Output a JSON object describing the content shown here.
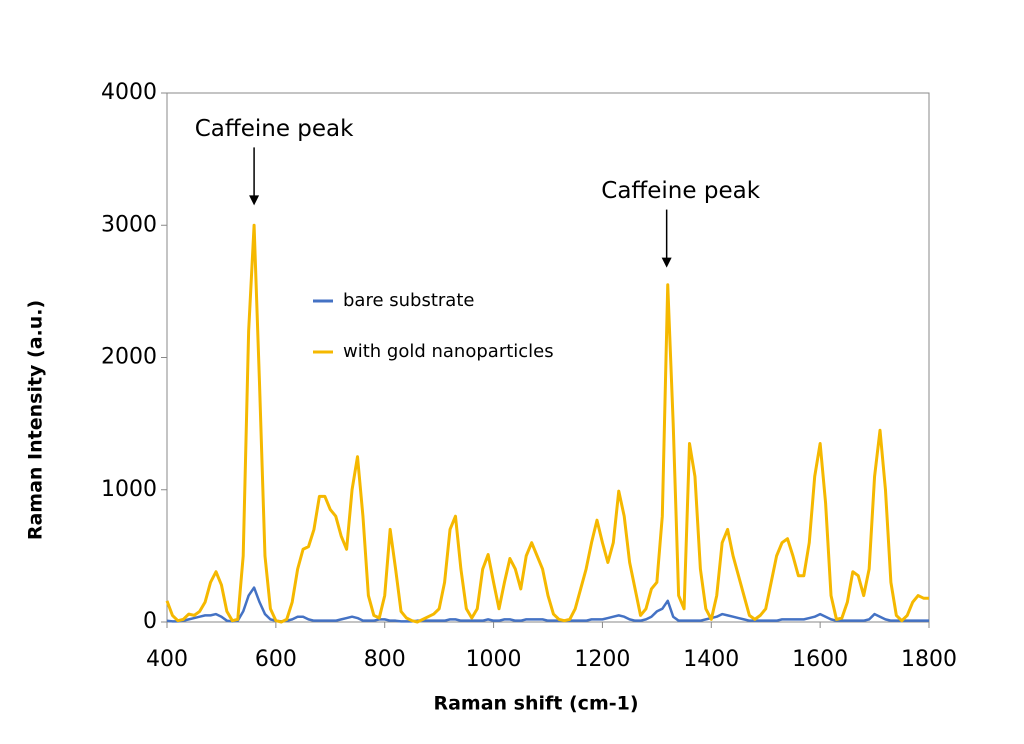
{
  "chart_data": {
    "type": "line",
    "xlabel": "Raman shift  (cm-1)",
    "ylabel": "Raman Intensity (a.u.)",
    "xlim": [
      400,
      1800
    ],
    "xticks": [
      400,
      600,
      800,
      1000,
      1200,
      1400,
      1600,
      1800
    ],
    "ylim": [
      0,
      4000
    ],
    "yticks": [
      0,
      1000,
      2000,
      3000,
      4000
    ],
    "grid": false,
    "legend": "center left",
    "x": [
      400,
      410,
      420,
      430,
      440,
      450,
      460,
      470,
      480,
      490,
      500,
      510,
      520,
      530,
      540,
      550,
      560,
      570,
      580,
      590,
      600,
      610,
      620,
      630,
      640,
      650,
      660,
      670,
      680,
      690,
      700,
      710,
      720,
      730,
      740,
      750,
      760,
      770,
      780,
      790,
      800,
      810,
      820,
      830,
      840,
      850,
      860,
      870,
      880,
      890,
      900,
      910,
      920,
      930,
      940,
      950,
      960,
      970,
      980,
      990,
      1000,
      1010,
      1020,
      1030,
      1040,
      1050,
      1060,
      1070,
      1080,
      1090,
      1100,
      1110,
      1120,
      1130,
      1140,
      1150,
      1160,
      1170,
      1180,
      1190,
      1200,
      1210,
      1220,
      1230,
      1240,
      1250,
      1260,
      1270,
      1280,
      1290,
      1300,
      1310,
      1320,
      1330,
      1340,
      1350,
      1360,
      1370,
      1380,
      1390,
      1400,
      1410,
      1420,
      1430,
      1440,
      1450,
      1460,
      1470,
      1480,
      1490,
      1500,
      1510,
      1520,
      1530,
      1540,
      1550,
      1560,
      1570,
      1580,
      1590,
      1600,
      1610,
      1620,
      1630,
      1640,
      1650,
      1660,
      1670,
      1680,
      1690,
      1700,
      1710,
      1720,
      1730,
      1740,
      1750,
      1760,
      1770,
      1780,
      1790,
      1800
    ],
    "series": [
      {
        "name": "bare substrate",
        "color": "#4472c4",
        "values": [
          10,
          5,
          5,
          10,
          20,
          30,
          40,
          50,
          50,
          60,
          40,
          10,
          5,
          10,
          80,
          200,
          260,
          150,
          60,
          20,
          10,
          5,
          10,
          20,
          40,
          40,
          20,
          10,
          10,
          10,
          10,
          10,
          20,
          30,
          40,
          30,
          10,
          10,
          10,
          20,
          20,
          10,
          10,
          5,
          5,
          5,
          10,
          10,
          10,
          10,
          10,
          10,
          20,
          20,
          10,
          10,
          10,
          10,
          10,
          20,
          10,
          10,
          20,
          20,
          10,
          10,
          20,
          20,
          20,
          20,
          10,
          10,
          10,
          10,
          10,
          10,
          10,
          10,
          20,
          20,
          20,
          30,
          40,
          50,
          40,
          20,
          10,
          10,
          20,
          40,
          80,
          100,
          160,
          40,
          10,
          10,
          10,
          10,
          10,
          20,
          30,
          40,
          60,
          50,
          40,
          30,
          20,
          10,
          10,
          10,
          10,
          10,
          10,
          20,
          20,
          20,
          20,
          20,
          30,
          40,
          60,
          40,
          20,
          10,
          10,
          10,
          10,
          10,
          10,
          20,
          60,
          40,
          20,
          10,
          10,
          10,
          10,
          10,
          10,
          10,
          10
        ]
      },
      {
        "name": "with gold nanoparticles",
        "color": "#f5b800",
        "values": [
          160,
          50,
          10,
          20,
          60,
          50,
          80,
          150,
          300,
          380,
          280,
          80,
          10,
          20,
          500,
          2200,
          3000,
          1800,
          500,
          100,
          10,
          0,
          20,
          150,
          400,
          550,
          570,
          700,
          950,
          950,
          850,
          800,
          650,
          550,
          1000,
          1250,
          800,
          200,
          50,
          30,
          200,
          700,
          400,
          80,
          30,
          10,
          0,
          20,
          40,
          60,
          100,
          300,
          700,
          800,
          400,
          100,
          30,
          100,
          400,
          510,
          300,
          100,
          300,
          480,
          400,
          250,
          500,
          600,
          500,
          400,
          200,
          60,
          20,
          10,
          20,
          100,
          250,
          400,
          600,
          770,
          600,
          450,
          600,
          990,
          800,
          450,
          250,
          50,
          100,
          250,
          300,
          800,
          2550,
          1500,
          200,
          100,
          1350,
          1100,
          400,
          100,
          20,
          200,
          600,
          700,
          500,
          350,
          200,
          50,
          20,
          50,
          100,
          300,
          500,
          600,
          630,
          500,
          350,
          350,
          600,
          1100,
          1350,
          900,
          200,
          20,
          30,
          150,
          380,
          350,
          200,
          400,
          1100,
          1450,
          1000,
          300,
          50,
          10,
          50,
          150,
          200,
          180,
          180
        ]
      }
    ],
    "annotations": [
      {
        "text": "Caffeine peak",
        "x": 560,
        "y": 3150
      },
      {
        "text": "Caffeine peak",
        "x": 1318,
        "y": 2680
      }
    ]
  }
}
